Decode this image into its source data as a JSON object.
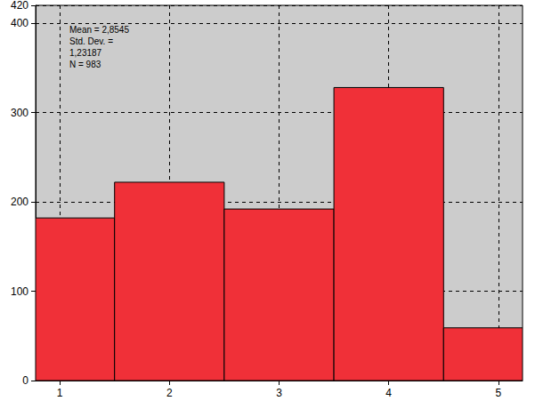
{
  "chart_data": {
    "type": "histogram",
    "bins": [
      0.78,
      1.5,
      2.5,
      3.5,
      4.5,
      5.22
    ],
    "values": [
      182,
      222,
      192,
      328,
      59
    ],
    "color": "#f03038",
    "xlim": [
      0.78,
      5.22
    ],
    "xticks": [
      1,
      2,
      3,
      4,
      5
    ],
    "ylim": [
      0,
      420
    ],
    "yticks": [
      0,
      100,
      200,
      300,
      400
    ],
    "grid": true,
    "annotations": [
      "Mean = 2,8545",
      "Std. Dev. =",
      "1,23187",
      "N = 983"
    ]
  }
}
